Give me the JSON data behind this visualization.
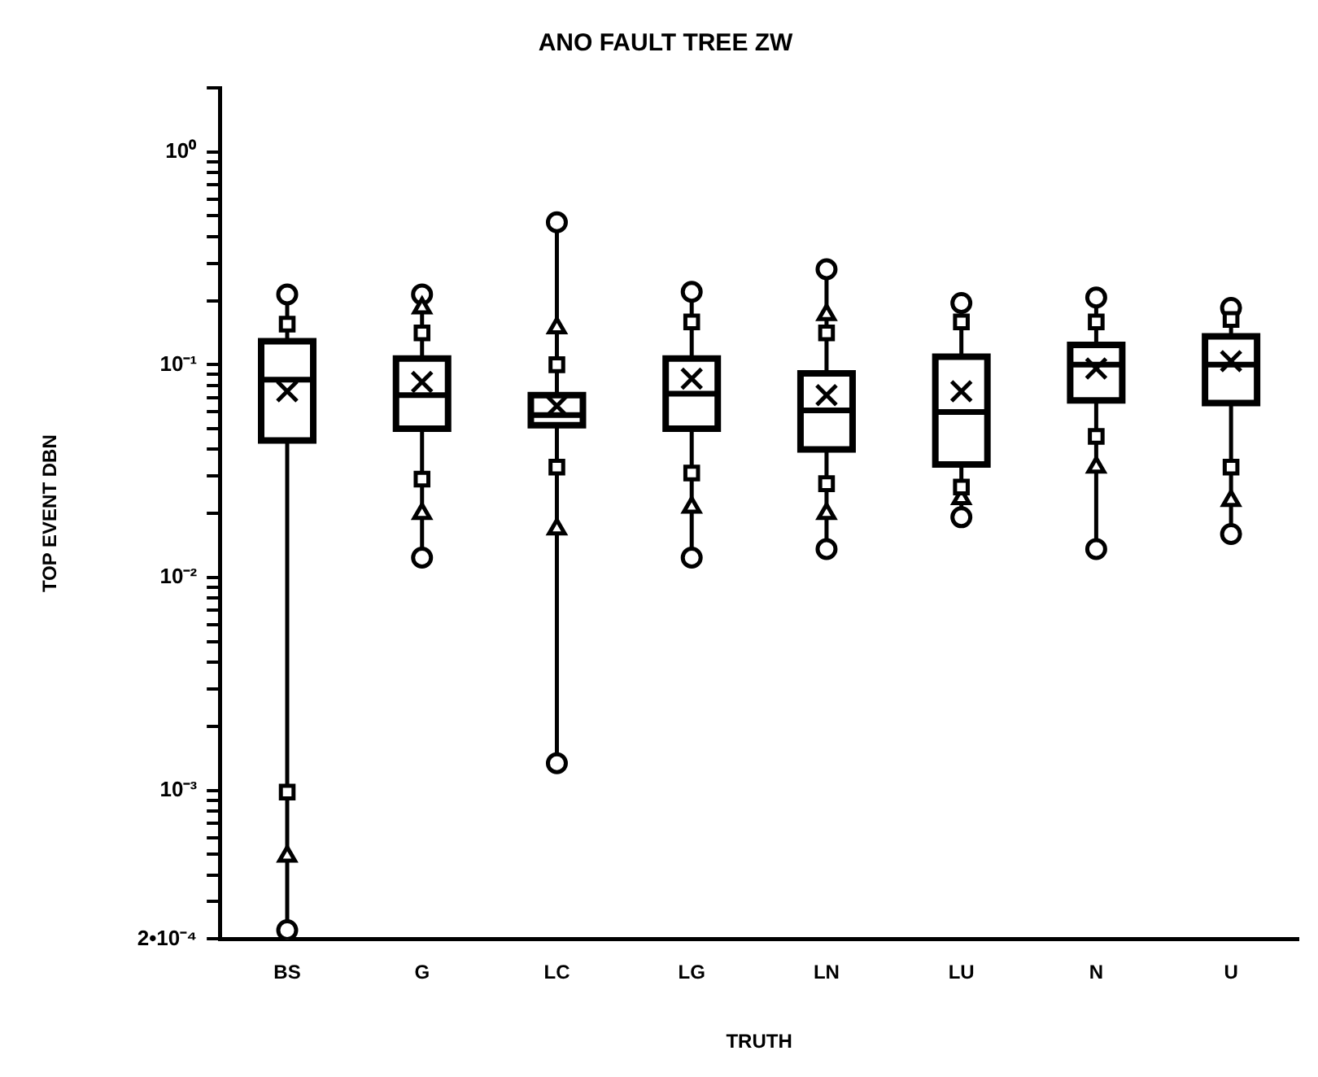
{
  "chart_data": {
    "type": "box",
    "title": "ANO FAULT TREE ZW",
    "xlabel": "TRUTH",
    "ylabel": "TOP EVENT DBN",
    "color": "#000000",
    "categories": [
      "BS",
      "G",
      "LC",
      "LG",
      "LN",
      "LU",
      "N",
      "U"
    ],
    "boxes": [
      {
        "low": 0.00022,
        "q1": 0.044,
        "median": 0.085,
        "q3": 0.129,
        "high": 0.214,
        "mean": 0.075
      },
      {
        "low": 0.0124,
        "q1": 0.05,
        "median": 0.072,
        "q3": 0.107,
        "high": 0.214,
        "mean": 0.083
      },
      {
        "low": 0.00134,
        "q1": 0.052,
        "median": 0.058,
        "q3": 0.072,
        "high": 0.467,
        "mean": 0.064
      },
      {
        "low": 0.0124,
        "q1": 0.05,
        "median": 0.073,
        "q3": 0.107,
        "high": 0.22,
        "mean": 0.086
      },
      {
        "low": 0.0136,
        "q1": 0.04,
        "median": 0.061,
        "q3": 0.091,
        "high": 0.281,
        "mean": 0.072
      },
      {
        "low": 0.0192,
        "q1": 0.034,
        "median": 0.06,
        "q3": 0.109,
        "high": 0.195,
        "mean": 0.075
      },
      {
        "low": 0.0136,
        "q1": 0.068,
        "median": 0.1,
        "q3": 0.124,
        "high": 0.207,
        "mean": 0.096
      },
      {
        "low": 0.016,
        "q1": 0.066,
        "median": 0.1,
        "q3": 0.136,
        "high": 0.185,
        "mean": 0.104
      }
    ],
    "series": [
      {
        "type": "scatter",
        "marker": "square",
        "color": "#000000",
        "x": [
          "BS",
          "BS",
          "G",
          "G",
          "LC",
          "LC",
          "LG",
          "LG",
          "LN",
          "LN",
          "LU",
          "LU",
          "N",
          "N",
          "U",
          "U"
        ],
        "values": [
          0.155,
          0.00098,
          0.141,
          0.029,
          0.1,
          0.033,
          0.159,
          0.031,
          0.141,
          0.0276,
          0.159,
          0.0266,
          0.159,
          0.046,
          0.163,
          0.033
        ]
      },
      {
        "type": "scatter",
        "marker": "triangle",
        "color": "#000000",
        "x": [
          "BS",
          "BS",
          "G",
          "G",
          "LC",
          "LC",
          "LG",
          "LG",
          "LN",
          "LN",
          "LU",
          "LU",
          "N",
          "N",
          "U",
          "U"
        ],
        "values": [
          null,
          0.00049,
          0.185,
          0.02,
          0.149,
          0.0169,
          null,
          0.0214,
          0.172,
          0.02,
          null,
          0.0235,
          null,
          0.033,
          null,
          0.023
        ]
      },
      {
        "type": "scatter",
        "marker": "circle",
        "color": "#000000",
        "x": [
          "BS",
          "BS",
          "G",
          "G",
          "LC",
          "LC",
          "LG",
          "LG",
          "LN",
          "LN",
          "LU",
          "LU",
          "N",
          "N",
          "U",
          "U"
        ],
        "values": [
          0.214,
          0.00022,
          0.214,
          0.0124,
          0.467,
          0.00134,
          0.22,
          0.0124,
          0.281,
          0.0136,
          0.195,
          0.0192,
          0.207,
          0.0136,
          0.185,
          0.016
        ]
      }
    ],
    "log": true,
    "ylim": [
      0.0002,
      2
    ],
    "yticks": [
      {
        "value": 0.0002,
        "label": "2•10⁻⁴"
      },
      {
        "value": 0.0003,
        "label": null
      },
      {
        "value": 0.0004,
        "label": null
      },
      {
        "value": 0.0005,
        "label": null
      },
      {
        "value": 0.0006,
        "label": null
      },
      {
        "value": 0.0007,
        "label": null
      },
      {
        "value": 0.0008,
        "label": null
      },
      {
        "value": 0.0009,
        "label": null
      },
      {
        "value": 0.001,
        "label": "10⁻³"
      },
      {
        "value": 0.002,
        "label": null
      },
      {
        "value": 0.003,
        "label": null
      },
      {
        "value": 0.004,
        "label": null
      },
      {
        "value": 0.005,
        "label": null
      },
      {
        "value": 0.006,
        "label": null
      },
      {
        "value": 0.007,
        "label": null
      },
      {
        "value": 0.008,
        "label": null
      },
      {
        "value": 0.009,
        "label": null
      },
      {
        "value": 0.01,
        "label": "10⁻²"
      },
      {
        "value": 0.02,
        "label": null
      },
      {
        "value": 0.03,
        "label": null
      },
      {
        "value": 0.04,
        "label": null
      },
      {
        "value": 0.05,
        "label": null
      },
      {
        "value": 0.06,
        "label": null
      },
      {
        "value": 0.07,
        "label": null
      },
      {
        "value": 0.08,
        "label": null
      },
      {
        "value": 0.09,
        "label": null
      },
      {
        "value": 0.1,
        "label": "10⁻¹"
      },
      {
        "value": 0.2,
        "label": null
      },
      {
        "value": 0.3,
        "label": null
      },
      {
        "value": 0.4,
        "label": null
      },
      {
        "value": 0.5,
        "label": null
      },
      {
        "value": 0.6,
        "label": null
      },
      {
        "value": 0.7,
        "label": null
      },
      {
        "value": 0.8,
        "label": null
      },
      {
        "value": 0.9,
        "label": null
      },
      {
        "value": 1,
        "label": "10⁰"
      },
      {
        "value": 2,
        "label": null
      }
    ],
    "grid": false,
    "legend": false
  }
}
